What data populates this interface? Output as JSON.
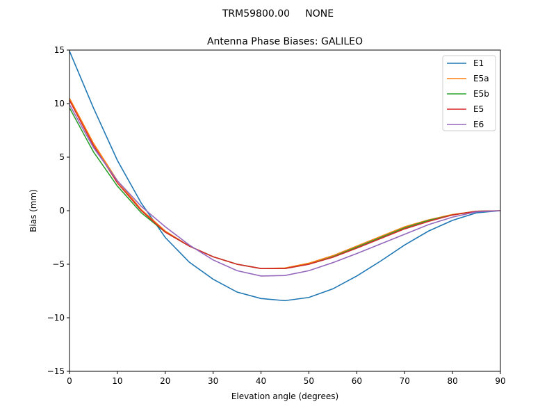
{
  "chart_data": {
    "type": "line",
    "suptitle": "TRM59800.00     NONE",
    "title": "Antenna Phase Biases: GALILEO",
    "xlabel": "Elevation angle (degrees)",
    "ylabel": "Bias (mm)",
    "xlim": [
      0,
      90
    ],
    "ylim": [
      -15,
      15
    ],
    "xticks": [
      0,
      10,
      20,
      30,
      40,
      50,
      60,
      70,
      80,
      90
    ],
    "yticks": [
      -15,
      -10,
      -5,
      0,
      5,
      10,
      15
    ],
    "grid": false,
    "legend_position": "top-right",
    "x": [
      0,
      5,
      10,
      15,
      20,
      25,
      30,
      35,
      40,
      45,
      50,
      55,
      60,
      65,
      70,
      75,
      80,
      85,
      90
    ],
    "series": [
      {
        "name": "E1",
        "color": "#1f77b4",
        "values": [
          14.9,
          9.6,
          4.7,
          0.7,
          -2.5,
          -4.8,
          -6.4,
          -7.6,
          -8.2,
          -8.4,
          -8.1,
          -7.3,
          -6.1,
          -4.7,
          -3.2,
          -1.9,
          -0.9,
          -0.2,
          0
        ]
      },
      {
        "name": "E5a",
        "color": "#ff7f0e",
        "values": [
          10.5,
          6.3,
          2.8,
          0.1,
          -1.9,
          -3.3,
          -4.3,
          -5.0,
          -5.4,
          -5.35,
          -4.9,
          -4.2,
          -3.3,
          -2.4,
          -1.5,
          -0.85,
          -0.35,
          -0.05,
          0
        ]
      },
      {
        "name": "E5b",
        "color": "#2ca02c",
        "values": [
          9.6,
          5.5,
          2.3,
          -0.2,
          -2.0,
          -3.3,
          -4.3,
          -5.0,
          -5.4,
          -5.4,
          -5.0,
          -4.3,
          -3.4,
          -2.5,
          -1.6,
          -0.9,
          -0.4,
          -0.05,
          0
        ]
      },
      {
        "name": "E5",
        "color": "#d62728",
        "values": [
          10.3,
          6.1,
          2.6,
          0.0,
          -2.0,
          -3.3,
          -4.3,
          -5.0,
          -5.4,
          -5.4,
          -5.0,
          -4.35,
          -3.5,
          -2.6,
          -1.7,
          -1.0,
          -0.4,
          -0.05,
          0
        ]
      },
      {
        "name": "E6",
        "color": "#9467bd",
        "values": [
          9.9,
          5.9,
          2.8,
          0.4,
          -1.5,
          -3.2,
          -4.6,
          -5.6,
          -6.1,
          -6.05,
          -5.6,
          -4.85,
          -4.0,
          -3.1,
          -2.2,
          -1.3,
          -0.6,
          -0.1,
          0
        ]
      }
    ]
  }
}
